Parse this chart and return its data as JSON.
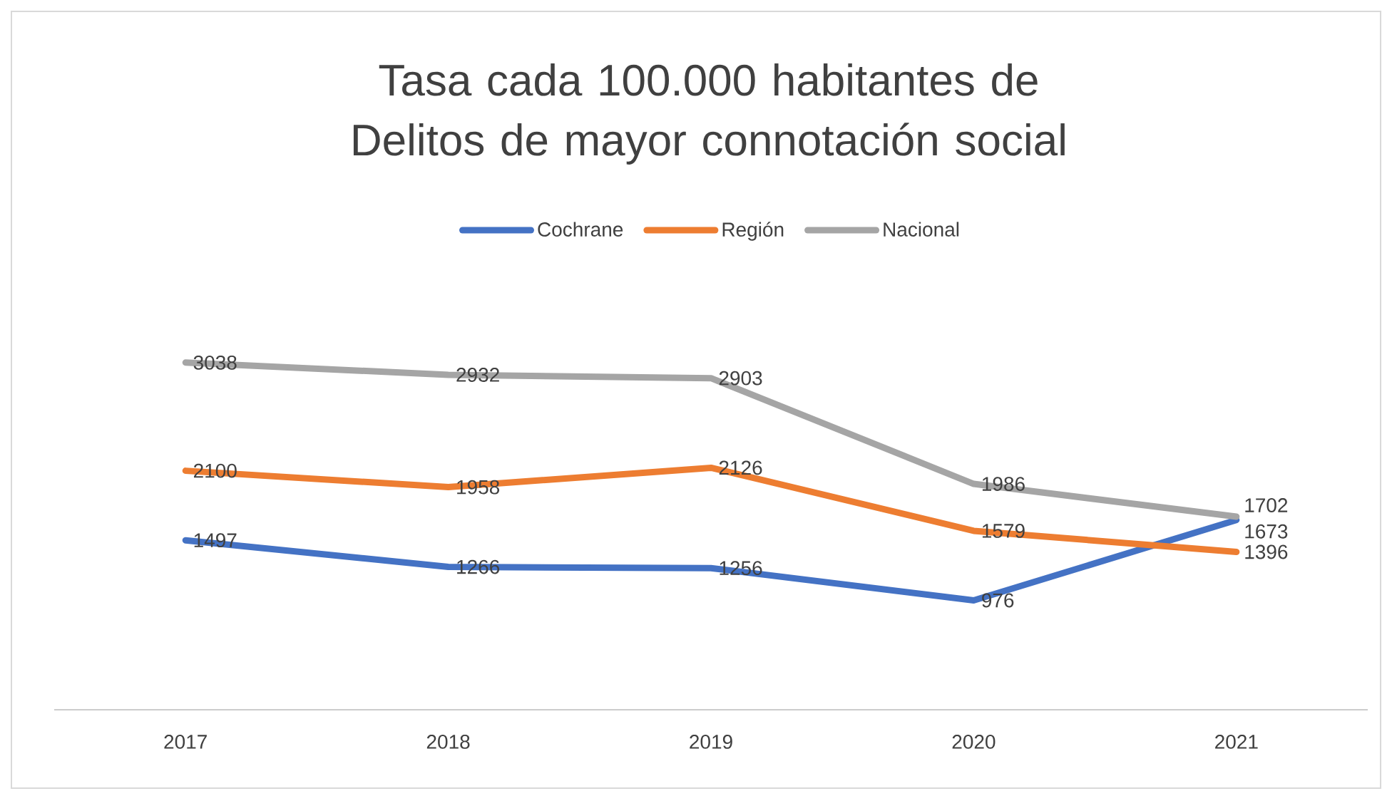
{
  "chart_data": {
    "type": "line",
    "title": "Tasa cada 100.000 habitantes de Delitos de mayor connotación social",
    "categories": [
      "2017",
      "2018",
      "2019",
      "2020",
      "2021"
    ],
    "series": [
      {
        "name": "Cochrane",
        "color": "#4472c4",
        "values": [
          1497,
          1266,
          1256,
          976,
          1673
        ]
      },
      {
        "name": "Región",
        "color": "#ed7d31",
        "values": [
          2100,
          1958,
          2126,
          1579,
          1396
        ]
      },
      {
        "name": "Nacional",
        "color": "#a5a5a5",
        "values": [
          3038,
          2932,
          2903,
          1986,
          1702
        ]
      }
    ],
    "tick_labels": "x",
    "data_labels": true,
    "legend": "top",
    "grid": false,
    "marker": "none",
    "line_style": "solid"
  }
}
